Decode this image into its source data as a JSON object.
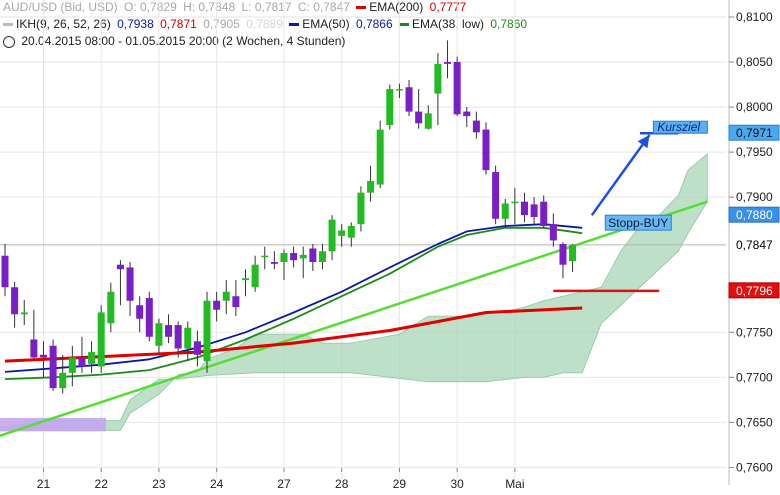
{
  "legend": {
    "instrument": "AUD/USD (Bid, USD)",
    "ohlc": {
      "o": "O: 0,7829",
      "h": "H: 0,7848",
      "l": "L: 0,7817",
      "c": "C: 0,7847"
    },
    "ema200": {
      "label": "EMA(200)",
      "value": "0,7777",
      "color": "#e00000"
    },
    "ikh": {
      "label": "IKH(9, 26, 52, 26)",
      "v1": "0,7938",
      "v2": "0,7871",
      "v3": "0,7905",
      "v4": "0,7889"
    },
    "ema50": {
      "label": "EMA(50)",
      "value": "0,7866",
      "color": "#0a1aa0"
    },
    "ema38": {
      "label": "EMA(38, low)",
      "value": "0,7860",
      "color": "#1e8a1e"
    },
    "period": "20.04.2015 08:00 - 01.05.2015 20:00 (2 Wochen, 4 Stunden)"
  },
  "chart_data": {
    "type": "candlestick",
    "ylim": [
      0.7586,
      0.811
    ],
    "y_ticks": [
      {
        "value": 0.81,
        "label": "0,8100"
      },
      {
        "value": 0.805,
        "label": "0,8050"
      },
      {
        "value": 0.8,
        "label": "0,8000"
      },
      {
        "value": 0.795,
        "label": "0,7950"
      },
      {
        "value": 0.79,
        "label": "0,7900"
      },
      {
        "value": 0.775,
        "label": "0,7750"
      },
      {
        "value": 0.77,
        "label": "0,7700"
      },
      {
        "value": 0.765,
        "label": "0,7650"
      },
      {
        "value": 0.76,
        "label": "0,7600"
      }
    ],
    "x_ticks": [
      {
        "index": 4,
        "label": "21"
      },
      {
        "index": 10,
        "label": "22"
      },
      {
        "index": 16,
        "label": "23"
      },
      {
        "index": 22,
        "label": "24"
      },
      {
        "index": 29,
        "label": "27"
      },
      {
        "index": 35,
        "label": "28"
      },
      {
        "index": 41,
        "label": "29"
      },
      {
        "index": 47,
        "label": "30"
      },
      {
        "index": 53,
        "label": "Mai"
      }
    ],
    "candles": [
      {
        "o": 0.7835,
        "h": 0.7848,
        "l": 0.779,
        "c": 0.78
      },
      {
        "o": 0.78,
        "h": 0.7806,
        "l": 0.7755,
        "c": 0.777
      },
      {
        "o": 0.777,
        "h": 0.7786,
        "l": 0.7758,
        "c": 0.7772
      },
      {
        "o": 0.7742,
        "h": 0.7775,
        "l": 0.772,
        "c": 0.7722
      },
      {
        "o": 0.7725,
        "h": 0.774,
        "l": 0.77,
        "c": 0.7722
      },
      {
        "o": 0.7735,
        "h": 0.7742,
        "l": 0.7685,
        "c": 0.7688
      },
      {
        "o": 0.7688,
        "h": 0.7725,
        "l": 0.7682,
        "c": 0.7705
      },
      {
        "o": 0.7705,
        "h": 0.7735,
        "l": 0.769,
        "c": 0.7722
      },
      {
        "o": 0.7722,
        "h": 0.7745,
        "l": 0.7705,
        "c": 0.7712
      },
      {
        "o": 0.7715,
        "h": 0.774,
        "l": 0.7705,
        "c": 0.7728
      },
      {
        "o": 0.7712,
        "h": 0.778,
        "l": 0.7705,
        "c": 0.7772
      },
      {
        "o": 0.776,
        "h": 0.7805,
        "l": 0.775,
        "c": 0.7795
      },
      {
        "o": 0.7825,
        "h": 0.783,
        "l": 0.778,
        "c": 0.782
      },
      {
        "o": 0.7822,
        "h": 0.7828,
        "l": 0.7768,
        "c": 0.7785
      },
      {
        "o": 0.778,
        "h": 0.779,
        "l": 0.775,
        "c": 0.7765
      },
      {
        "o": 0.7788,
        "h": 0.7795,
        "l": 0.774,
        "c": 0.7745
      },
      {
        "o": 0.7735,
        "h": 0.7765,
        "l": 0.7725,
        "c": 0.776
      },
      {
        "o": 0.7758,
        "h": 0.777,
        "l": 0.7738,
        "c": 0.7745
      },
      {
        "o": 0.7758,
        "h": 0.7762,
        "l": 0.7722,
        "c": 0.7732
      },
      {
        "o": 0.7732,
        "h": 0.7762,
        "l": 0.7718,
        "c": 0.7755
      },
      {
        "o": 0.774,
        "h": 0.7752,
        "l": 0.7712,
        "c": 0.7725
      },
      {
        "o": 0.7718,
        "h": 0.7795,
        "l": 0.7705,
        "c": 0.7785
      },
      {
        "o": 0.7785,
        "h": 0.7795,
        "l": 0.7762,
        "c": 0.7775
      },
      {
        "o": 0.7785,
        "h": 0.7808,
        "l": 0.777,
        "c": 0.7795
      },
      {
        "o": 0.779,
        "h": 0.7808,
        "l": 0.7768,
        "c": 0.7778
      },
      {
        "o": 0.7808,
        "h": 0.782,
        "l": 0.779,
        "c": 0.781
      },
      {
        "o": 0.78,
        "h": 0.7835,
        "l": 0.7795,
        "c": 0.7825
      },
      {
        "o": 0.7835,
        "h": 0.7845,
        "l": 0.782,
        "c": 0.7835
      },
      {
        "o": 0.7828,
        "h": 0.784,
        "l": 0.782,
        "c": 0.7826
      },
      {
        "o": 0.7828,
        "h": 0.7842,
        "l": 0.7808,
        "c": 0.7838
      },
      {
        "o": 0.7838,
        "h": 0.7845,
        "l": 0.7822,
        "c": 0.783
      },
      {
        "o": 0.7832,
        "h": 0.7845,
        "l": 0.781,
        "c": 0.7836
      },
      {
        "o": 0.7843,
        "h": 0.7848,
        "l": 0.7818,
        "c": 0.7828
      },
      {
        "o": 0.7828,
        "h": 0.7848,
        "l": 0.782,
        "c": 0.784
      },
      {
        "o": 0.784,
        "h": 0.788,
        "l": 0.783,
        "c": 0.7875
      },
      {
        "o": 0.7857,
        "h": 0.787,
        "l": 0.7845,
        "c": 0.7863
      },
      {
        "o": 0.7855,
        "h": 0.7872,
        "l": 0.7845,
        "c": 0.7868
      },
      {
        "o": 0.787,
        "h": 0.7912,
        "l": 0.7862,
        "c": 0.7905
      },
      {
        "o": 0.7905,
        "h": 0.7935,
        "l": 0.7895,
        "c": 0.7918
      },
      {
        "o": 0.7914,
        "h": 0.7985,
        "l": 0.791,
        "c": 0.7975
      },
      {
        "o": 0.798,
        "h": 0.8025,
        "l": 0.7975,
        "c": 0.802
      },
      {
        "o": 0.802,
        "h": 0.8026,
        "l": 0.801,
        "c": 0.802
      },
      {
        "o": 0.8022,
        "h": 0.803,
        "l": 0.799,
        "c": 0.7995
      },
      {
        "o": 0.7995,
        "h": 0.802,
        "l": 0.7976,
        "c": 0.7982
      },
      {
        "o": 0.7976,
        "h": 0.8002,
        "l": 0.7975,
        "c": 0.7993
      },
      {
        "o": 0.8015,
        "h": 0.806,
        "l": 0.798,
        "c": 0.8048
      },
      {
        "o": 0.805,
        "h": 0.8074,
        "l": 0.8032,
        "c": 0.8048
      },
      {
        "o": 0.805,
        "h": 0.8056,
        "l": 0.799,
        "c": 0.7992
      },
      {
        "o": 0.7995,
        "h": 0.8,
        "l": 0.7978,
        "c": 0.799
      },
      {
        "o": 0.7985,
        "h": 0.7995,
        "l": 0.7965,
        "c": 0.7972
      },
      {
        "o": 0.7975,
        "h": 0.7983,
        "l": 0.7925,
        "c": 0.793
      },
      {
        "o": 0.7928,
        "h": 0.7935,
        "l": 0.787,
        "c": 0.7876
      },
      {
        "o": 0.7876,
        "h": 0.7898,
        "l": 0.7866,
        "c": 0.7893
      },
      {
        "o": 0.7895,
        "h": 0.791,
        "l": 0.787,
        "c": 0.7895
      },
      {
        "o": 0.7895,
        "h": 0.7905,
        "l": 0.7872,
        "c": 0.788
      },
      {
        "o": 0.7892,
        "h": 0.79,
        "l": 0.787,
        "c": 0.7878
      },
      {
        "o": 0.7895,
        "h": 0.7902,
        "l": 0.7865,
        "c": 0.7868
      },
      {
        "o": 0.787,
        "h": 0.7882,
        "l": 0.7845,
        "c": 0.7852
      },
      {
        "o": 0.7848,
        "h": 0.785,
        "l": 0.781,
        "c": 0.7825
      },
      {
        "o": 0.7829,
        "h": 0.7848,
        "l": 0.7817,
        "c": 0.7847
      }
    ],
    "ema200": [
      [
        0,
        0.7718
      ],
      [
        10,
        0.7723
      ],
      [
        20,
        0.7728
      ],
      [
        30,
        0.7738
      ],
      [
        40,
        0.7752
      ],
      [
        45,
        0.7762
      ],
      [
        50,
        0.7772
      ],
      [
        60,
        0.7777
      ]
    ],
    "ema50": [
      [
        0,
        0.7706
      ],
      [
        5,
        0.771
      ],
      [
        10,
        0.7714
      ],
      [
        15,
        0.772
      ],
      [
        20,
        0.7733
      ],
      [
        25,
        0.775
      ],
      [
        30,
        0.7772
      ],
      [
        35,
        0.7795
      ],
      [
        40,
        0.7822
      ],
      [
        45,
        0.7848
      ],
      [
        48,
        0.7862
      ],
      [
        52,
        0.7868
      ],
      [
        56,
        0.787
      ],
      [
        60,
        0.7866
      ]
    ],
    "ema38": [
      [
        0,
        0.7698
      ],
      [
        5,
        0.77
      ],
      [
        10,
        0.7703
      ],
      [
        15,
        0.7708
      ],
      [
        20,
        0.7722
      ],
      [
        25,
        0.7742
      ],
      [
        30,
        0.7765
      ],
      [
        35,
        0.779
      ],
      [
        40,
        0.7815
      ],
      [
        45,
        0.7845
      ],
      [
        48,
        0.7858
      ],
      [
        52,
        0.7866
      ],
      [
        56,
        0.7866
      ],
      [
        60,
        0.786
      ]
    ],
    "cloud_top": [
      [
        -1,
        0.764
      ],
      [
        2,
        0.7642
      ],
      [
        4,
        0.7641
      ],
      [
        12,
        0.7641
      ],
      [
        13,
        0.766
      ],
      [
        16,
        0.7681
      ],
      [
        18,
        0.7703
      ],
      [
        20,
        0.7706
      ],
      [
        21,
        0.772
      ],
      [
        24,
        0.7732
      ],
      [
        26,
        0.7748
      ],
      [
        31,
        0.7748
      ],
      [
        33,
        0.7738
      ],
      [
        36,
        0.7738
      ],
      [
        38,
        0.7742
      ],
      [
        41,
        0.7748
      ],
      [
        44,
        0.7768
      ],
      [
        48,
        0.7768
      ],
      [
        52,
        0.7773
      ],
      [
        54,
        0.7778
      ],
      [
        56,
        0.7785
      ],
      [
        60,
        0.7795
      ],
      [
        62,
        0.78
      ],
      [
        64,
        0.784
      ],
      [
        66,
        0.7868
      ],
      [
        68,
        0.788
      ],
      [
        70,
        0.7902
      ],
      [
        71,
        0.793
      ],
      [
        73,
        0.7948
      ]
    ],
    "cloud_bottom": [
      [
        -1,
        0.7645
      ],
      [
        2,
        0.7648
      ],
      [
        4,
        0.7652
      ],
      [
        12,
        0.7652
      ],
      [
        13,
        0.7675
      ],
      [
        16,
        0.7698
      ],
      [
        18,
        0.7698
      ],
      [
        21,
        0.7702
      ],
      [
        26,
        0.7705
      ],
      [
        32,
        0.7705
      ],
      [
        36,
        0.7705
      ],
      [
        40,
        0.77
      ],
      [
        44,
        0.7695
      ],
      [
        50,
        0.7695
      ],
      [
        54,
        0.77
      ],
      [
        56,
        0.77
      ],
      [
        58,
        0.7705
      ],
      [
        60,
        0.7705
      ],
      [
        62,
        0.776
      ],
      [
        64,
        0.778
      ],
      [
        66,
        0.78
      ],
      [
        68,
        0.782
      ],
      [
        70,
        0.784
      ],
      [
        71,
        0.786
      ],
      [
        73,
        0.7895
      ]
    ],
    "trendline": [
      [
        -2,
        0.763
      ],
      [
        73,
        0.7895
      ]
    ],
    "stop_line": {
      "from": 57,
      "to": 68,
      "value": 0.7796
    },
    "last_price_line": 0.7847,
    "price_labels": [
      {
        "value": 0.7971,
        "label": "0,7971",
        "text_color": "#111111",
        "bg": "#4aa8f0",
        "border": "#2a80d0"
      },
      {
        "value": 0.788,
        "label": "0,7880",
        "text_color": "#ffffff",
        "bg": "#3a8fe8",
        "border": "#2a70c0"
      },
      {
        "value": 0.7847,
        "label": "0,7847",
        "text_color": "#000000",
        "bg": "none",
        "border": "none"
      },
      {
        "value": 0.7796,
        "label": "0,7796",
        "text_color": "#ffffff",
        "bg": "#e01010",
        "border": "#b00000"
      }
    ],
    "annotations": [
      {
        "text": "Kursziel",
        "value": 0.7971
      },
      {
        "text": "Stopp-BUY",
        "value": 0.788
      }
    ],
    "kursziel_line": {
      "from": 66,
      "to": 70,
      "value": 0.7971
    },
    "arrow": {
      "from": [
        61,
        0.788
      ],
      "to": [
        67,
        0.7969
      ]
    },
    "grid": true,
    "colors": {
      "bull": "#22bb22",
      "bear": "#7a1ec8",
      "ema200": "#e00000",
      "ema50": "#0a1aa0",
      "ema38": "#1e8a1e",
      "trend": "#55dd33",
      "cloud": "#a8d5b5",
      "cloud_low": "#c4a6f0",
      "stop": "#e01010",
      "kursziel": "#1e50e0"
    }
  }
}
